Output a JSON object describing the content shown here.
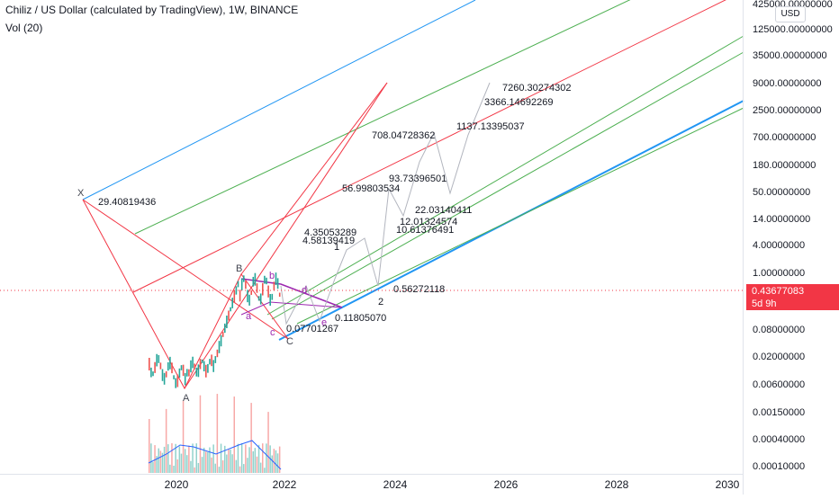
{
  "header": {
    "title": "Chiliz / US Dollar (calculated by TradingView), 1W, BINANCE",
    "volume_label": "Vol (20)"
  },
  "price_axis": {
    "currency": "USD",
    "ticks": [
      "425000.00000000",
      "125000.00000000",
      "35000.00000000",
      "9000.00000000",
      "2500.00000000",
      "700.00000000",
      "180.00000000",
      "50.00000000",
      "14.00000000",
      "4.00000000",
      "1.00000000",
      "0.08000000",
      "0.02000000",
      "0.00600000",
      "0.00150000",
      "0.00040000",
      "0.00010000"
    ],
    "current_price": "0.43677083",
    "countdown": "5d 9h"
  },
  "time_axis": {
    "ticks": [
      "2020",
      "2022",
      "2024",
      "2026",
      "2028",
      "2030"
    ]
  },
  "pattern_points": {
    "X": "X",
    "A": "A",
    "B": "B",
    "C": "C",
    "a": "a",
    "b": "b",
    "c": "c",
    "d": "d",
    "e": "e",
    "w1": "1",
    "w2": "2"
  },
  "annotations": {
    "x_value": "29.40819436",
    "c_value": "0.07701267",
    "e_value": "0.11805070",
    "w2_value": "0.56272118",
    "v4350": "4.35053289",
    "v4581": "4.58139419",
    "v10613": "10.61376491",
    "v12013": "12.01324574",
    "v22031": "22.03140411",
    "v56998": "56.99803534",
    "v93733": "93.73396501",
    "v708": "708.04728362",
    "v1137": "1137.13395037",
    "v3366": "3366.14692269",
    "v7260": "7260.30274302"
  },
  "colors": {
    "blue": "#2196f3",
    "green": "#4caf50",
    "red": "#f23645",
    "purple": "#9c27b0",
    "grey_path": "#b2b5be",
    "candle_up": "#26a69a",
    "candle_down": "#ef5350",
    "vol_ma": "#2962ff"
  }
}
